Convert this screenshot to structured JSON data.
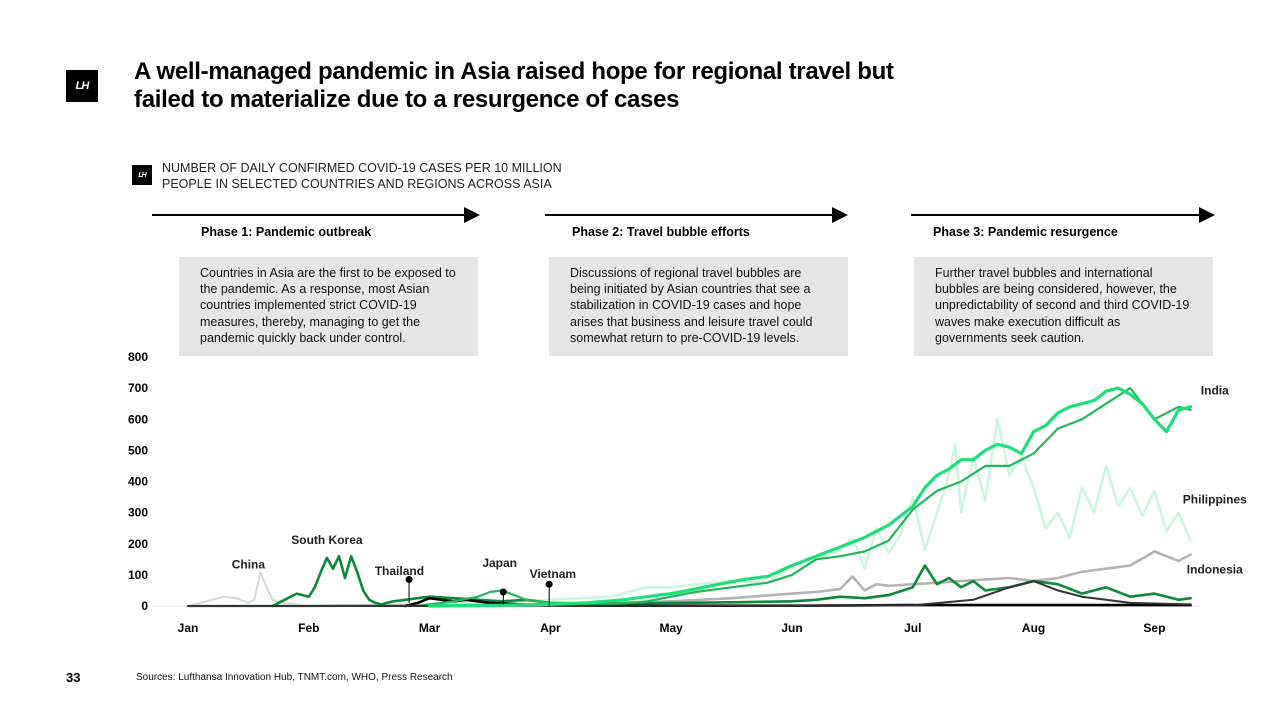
{
  "logo": {
    "text": "LH"
  },
  "title": "A well-managed pandemic in Asia raised hope for regional travel but failed to materialize due to a resurgence of cases",
  "subtitle_line1": "NUMBER OF DAILY CONFIRMED COVID-19 CASES PER 10 MILLION",
  "subtitle_line2": "PEOPLE IN SELECTED COUNTRIES AND REGIONS ACROSS ASIA",
  "phases": [
    {
      "label": "Phase 1:  Pandemic outbreak",
      "text": "Countries in Asia are the first to be exposed to the pandemic. As a response, most Asian countries implemented strict COVID-19 measures, thereby, managing to get the pandemic quickly back under control."
    },
    {
      "label": "Phase 2: Travel bubble efforts",
      "text": "Discussions of regional travel bubbles are being initiated by Asian countries that see a stabilization in COVID-19 cases and hope arises that business and leisure travel could somewhat return to pre-COVID-19 levels."
    },
    {
      "label": "Phase 3: Pandemic resurgence",
      "text": "Further travel bubbles and international bubbles are being considered, however, the unpredictability of second and third COVID-19 waves make execution difficult as governments seek caution."
    }
  ],
  "page_number": "33",
  "sources": "Sources: Lufthansa Innovation Hub, TNMT.com, WHO, Press Research",
  "colors": {
    "india": "#1ee07a",
    "philippines": "#cdf6e2",
    "indonesia": "#b3b3b3",
    "south_korea": "#0b8a3c",
    "china": "#d6d6d6",
    "thailand": "#000000",
    "japan": "#22b85a",
    "vietnam": "#333333",
    "phase_box": "#e6e6e6"
  },
  "chart_data": {
    "type": "line",
    "title": "",
    "xlabel": "",
    "ylabel": "",
    "ylim": [
      0,
      800
    ],
    "yticks": [
      0,
      100,
      200,
      300,
      400,
      500,
      600,
      700,
      800
    ],
    "xlim": [
      0,
      8.4
    ],
    "month_ticks": [
      {
        "label": "Jan",
        "x": 0
      },
      {
        "label": "Feb",
        "x": 1
      },
      {
        "label": "Mar",
        "x": 2
      },
      {
        "label": "Apr",
        "x": 3
      },
      {
        "label": "May",
        "x": 4
      },
      {
        "label": "Jun",
        "x": 5
      },
      {
        "label": "Jul",
        "x": 6
      },
      {
        "label": "Aug",
        "x": 7
      },
      {
        "label": "Sep",
        "x": 8
      }
    ],
    "series": [
      {
        "name": "Philippines",
        "key": "philippines",
        "x": [
          0,
          1,
          2,
          2.5,
          3,
          3.5,
          3.8,
          4,
          4.2,
          4.5,
          4.8,
          5,
          5.2,
          5.4,
          5.5,
          5.6,
          5.7,
          5.8,
          5.9,
          6,
          6.1,
          6.2,
          6.3,
          6.35,
          6.4,
          6.5,
          6.6,
          6.7,
          6.8,
          6.9,
          7,
          7.1,
          7.2,
          7.3,
          7.4,
          7.5,
          7.6,
          7.7,
          7.8,
          7.9,
          8,
          8.1,
          8.2,
          8.3
        ],
        "values": [
          0,
          2,
          5,
          12,
          20,
          30,
          60,
          60,
          70,
          80,
          75,
          130,
          150,
          180,
          220,
          120,
          250,
          170,
          230,
          350,
          180,
          300,
          420,
          520,
          300,
          480,
          340,
          600,
          420,
          480,
          380,
          250,
          300,
          220,
          380,
          300,
          450,
          320,
          380,
          290,
          370,
          240,
          300,
          210
        ]
      },
      {
        "name": "Indonesia",
        "key": "indonesia",
        "x": [
          0,
          1,
          2,
          3,
          3.5,
          4,
          4.5,
          5,
          5.2,
          5.4,
          5.5,
          5.6,
          5.7,
          5.8,
          6,
          6.2,
          6.4,
          6.6,
          6.8,
          7,
          7.2,
          7.4,
          7.6,
          7.8,
          8,
          8.2,
          8.3
        ],
        "values": [
          0,
          0,
          3,
          5,
          10,
          15,
          25,
          40,
          45,
          55,
          95,
          50,
          70,
          65,
          70,
          75,
          80,
          85,
          90,
          80,
          90,
          110,
          120,
          130,
          175,
          145,
          165
        ]
      },
      {
        "name": "China",
        "key": "china",
        "x": [
          0,
          0.1,
          0.2,
          0.3,
          0.4,
          0.5,
          0.55,
          0.6,
          0.65,
          0.7,
          0.8,
          0.9,
          1
        ],
        "values": [
          0,
          10,
          20,
          30,
          25,
          10,
          20,
          110,
          60,
          20,
          10,
          5,
          0
        ]
      },
      {
        "name": "South Korea",
        "key": "south_korea",
        "x": [
          0.7,
          0.8,
          0.9,
          1,
          1.05,
          1.1,
          1.15,
          1.2,
          1.25,
          1.3,
          1.35,
          1.4,
          1.45,
          1.5,
          1.55,
          1.6,
          1.7,
          1.8,
          1.9,
          2,
          2.2,
          2.4,
          2.6,
          2.8,
          3,
          3.5,
          4,
          4.5,
          5,
          5.2,
          5.4,
          5.6,
          5.8,
          6,
          6.1,
          6.2,
          6.3,
          6.4,
          6.5,
          6.6,
          6.8,
          7,
          7.2,
          7.4,
          7.6,
          7.8,
          8,
          8.2,
          8.3
        ],
        "values": [
          0,
          20,
          40,
          30,
          60,
          110,
          155,
          120,
          160,
          90,
          160,
          110,
          50,
          20,
          10,
          5,
          15,
          20,
          25,
          30,
          25,
          20,
          15,
          20,
          10,
          8,
          10,
          12,
          15,
          20,
          30,
          25,
          35,
          60,
          130,
          70,
          90,
          60,
          80,
          50,
          60,
          80,
          70,
          40,
          60,
          30,
          40,
          20,
          25
        ]
      },
      {
        "name": "Thailand",
        "key": "thailand",
        "x": [
          1.8,
          1.9,
          2,
          2.1,
          2.2,
          2.3,
          2.4,
          2.5,
          2.6,
          2.7,
          2.8,
          3,
          3.5,
          4,
          4.5,
          5,
          5.5,
          6,
          6.5,
          7,
          7.2,
          7.4,
          7.6,
          7.8,
          8,
          8.3
        ],
        "values": [
          0,
          10,
          25,
          20,
          15,
          20,
          15,
          10,
          8,
          6,
          4,
          2,
          1,
          1,
          1,
          1,
          2,
          3,
          3,
          3,
          3,
          3,
          3,
          3,
          3,
          3
        ]
      },
      {
        "name": "Japan",
        "key": "japan",
        "x": [
          1.9,
          2,
          2.2,
          2.4,
          2.5,
          2.6,
          2.7,
          2.8,
          2.9,
          3,
          3.2,
          3.4,
          3.6,
          3.8,
          4,
          4.2,
          4.5,
          4.8,
          5,
          5.2,
          5.4,
          5.6,
          5.8,
          6,
          6.2,
          6.4,
          6.6,
          6.8,
          7,
          7.2,
          7.4,
          7.6,
          7.8,
          8,
          8.2,
          8.3
        ],
        "values": [
          0,
          5,
          15,
          30,
          45,
          50,
          35,
          20,
          15,
          10,
          8,
          5,
          8,
          15,
          30,
          45,
          60,
          75,
          100,
          150,
          160,
          175,
          210,
          310,
          370,
          400,
          450,
          450,
          490,
          570,
          600,
          650,
          700,
          600,
          640,
          630
        ]
      },
      {
        "name": "Vietnam",
        "key": "vietnam",
        "x": [
          0,
          1,
          2,
          3,
          4,
          5,
          6,
          6.5,
          6.8,
          7,
          7.2,
          7.4,
          7.6,
          7.8,
          8,
          8.3
        ],
        "values": [
          0,
          0,
          0,
          1,
          1,
          1,
          2,
          20,
          60,
          80,
          50,
          30,
          20,
          10,
          8,
          5
        ]
      },
      {
        "name": "India",
        "key": "india",
        "x": [
          2,
          2.5,
          3,
          3.3,
          3.6,
          4,
          4.2,
          4.4,
          4.6,
          4.8,
          5,
          5.2,
          5.4,
          5.6,
          5.8,
          6,
          6.1,
          6.2,
          6.3,
          6.4,
          6.5,
          6.6,
          6.7,
          6.8,
          6.9,
          7,
          7.1,
          7.2,
          7.3,
          7.4,
          7.5,
          7.6,
          7.7,
          7.8,
          7.9,
          8,
          8.1,
          8.2,
          8.3
        ],
        "values": [
          0,
          2,
          5,
          10,
          20,
          40,
          55,
          70,
          85,
          95,
          130,
          160,
          190,
          220,
          260,
          320,
          380,
          420,
          440,
          470,
          470,
          500,
          520,
          510,
          490,
          560,
          580,
          620,
          640,
          650,
          660,
          690,
          700,
          680,
          650,
          600,
          560,
          630,
          640
        ]
      }
    ],
    "annotations": [
      {
        "text": "China",
        "x": 0.5,
        "y": 120
      },
      {
        "text": "South Korea",
        "x": 1.15,
        "y": 200
      },
      {
        "text": "Thailand",
        "x": 1.75,
        "y": 100,
        "marker": {
          "x": 1.83,
          "y": 85,
          "to": 10
        }
      },
      {
        "text": "Japan",
        "x": 2.58,
        "y": 125,
        "marker": {
          "x": 2.61,
          "y": 45,
          "to": 5
        }
      },
      {
        "text": "Vietnam",
        "x": 3.02,
        "y": 90,
        "marker": {
          "x": 2.99,
          "y": 70,
          "to": 0
        }
      },
      {
        "text": "India",
        "x": 8.5,
        "y": 680
      },
      {
        "text": "Philippines",
        "x": 8.5,
        "y": 330
      },
      {
        "text": "Indonesia",
        "x": 8.5,
        "y": 105
      }
    ]
  }
}
